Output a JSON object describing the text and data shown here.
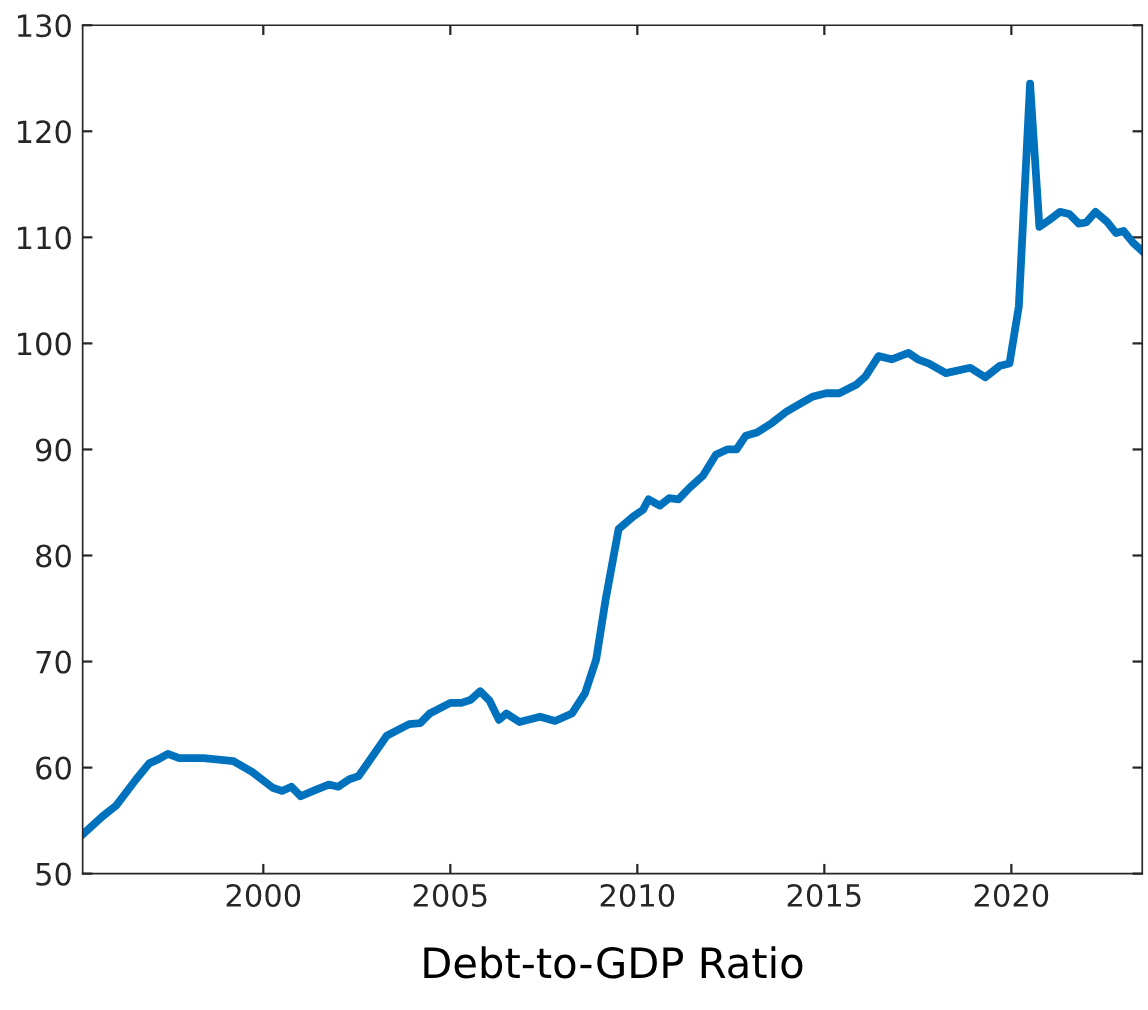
{
  "chart_data": {
    "type": "line",
    "xlabel": "Debt-to-GDP Ratio",
    "x": [
      1995.17,
      1995.7,
      1996.06,
      1996.6,
      1996.95,
      1997.2,
      1997.45,
      1997.75,
      1998.4,
      1999.2,
      1999.7,
      2000.25,
      2000.5,
      2000.75,
      2001.0,
      2001.4,
      2001.75,
      2002.0,
      2002.3,
      2002.55,
      2003.3,
      2003.9,
      2004.2,
      2004.45,
      2005.0,
      2005.3,
      2005.55,
      2005.8,
      2006.05,
      2006.3,
      2006.5,
      2006.85,
      2007.4,
      2007.8,
      2008.25,
      2008.6,
      2008.9,
      2009.15,
      2009.5,
      2009.9,
      2010.15,
      2010.3,
      2010.6,
      2010.85,
      2011.1,
      2011.4,
      2011.75,
      2012.1,
      2012.4,
      2012.65,
      2012.9,
      2013.2,
      2013.6,
      2014.0,
      2014.3,
      2014.7,
      2015.05,
      2015.4,
      2015.85,
      2016.1,
      2016.45,
      2016.8,
      2017.25,
      2017.5,
      2017.8,
      2018.25,
      2018.9,
      2019.3,
      2019.7,
      2019.95,
      2020.2,
      2020.5,
      2020.75,
      2021.0,
      2021.3,
      2021.55,
      2021.8,
      2022.0,
      2022.25,
      2022.55,
      2022.8,
      2023.0,
      2023.25,
      2023.5
    ],
    "series": [
      {
        "color": "#0072bd",
        "values": [
          53.7,
          55.4,
          56.4,
          58.9,
          60.4,
          60.8,
          61.3,
          60.9,
          60.9,
          60.6,
          59.6,
          58.1,
          57.8,
          58.2,
          57.3,
          57.9,
          58.4,
          58.2,
          58.9,
          59.2,
          63.0,
          64.1,
          64.2,
          65.1,
          66.1,
          66.1,
          66.4,
          67.2,
          66.3,
          64.5,
          65.1,
          64.3,
          64.8,
          64.4,
          65.1,
          67.0,
          70.2,
          75.8,
          82.5,
          83.7,
          84.3,
          85.3,
          84.7,
          85.4,
          85.3,
          86.4,
          87.5,
          89.5,
          90.0,
          90.0,
          91.3,
          91.6,
          92.5,
          93.6,
          94.2,
          95.0,
          95.3,
          95.3,
          96.1,
          96.9,
          98.8,
          98.5,
          99.1,
          98.5,
          98.1,
          97.2,
          97.7,
          96.8,
          97.9,
          98.1,
          103.5,
          124.5,
          111.0,
          111.6,
          112.4,
          112.2,
          111.3,
          111.4,
          112.4,
          111.5,
          110.4,
          110.6,
          109.5,
          108.7
        ]
      }
    ],
    "xlim": [
      1995.17,
      2023.5
    ],
    "ylim": [
      50,
      130
    ],
    "xticks": [
      2000,
      2005,
      2010,
      2015,
      2020
    ],
    "yticks": [
      50,
      60,
      70,
      80,
      90,
      100,
      110,
      120,
      130
    ],
    "grid": false,
    "marker": "none",
    "line_style": "solid"
  }
}
